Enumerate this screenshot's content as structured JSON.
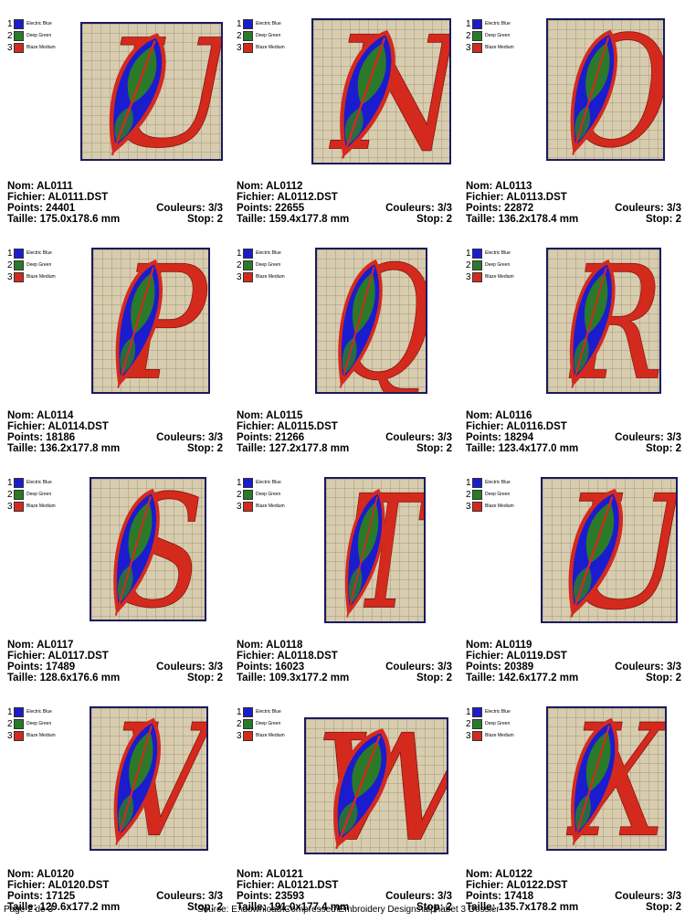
{
  "palette": [
    {
      "num": "1",
      "name": "Electric Blue",
      "hex": "#1c1ccf"
    },
    {
      "num": "2",
      "name": "Deep Green",
      "hex": "#2a7a2a"
    },
    {
      "num": "3",
      "name": "Blaze Medium",
      "hex": "#d42a1e"
    }
  ],
  "labels": {
    "name": "Nom: ",
    "file": "Fichier: ",
    "points": "Points: ",
    "colors": "Couleurs: ",
    "size": "Taille: ",
    "stop": "Stop: "
  },
  "designs": [
    {
      "letter": "U",
      "name": "AL0111",
      "file": "AL0111.DST",
      "points": "24401",
      "colors": "3/3",
      "size": "175.0x178.6 mm",
      "stop": "2"
    },
    {
      "letter": "N",
      "name": "AL0112",
      "file": "AL0112.DST",
      "points": "22655",
      "colors": "3/3",
      "size": "159.4x177.8 mm",
      "stop": "2"
    },
    {
      "letter": "O",
      "name": "AL0113",
      "file": "AL0113.DST",
      "points": "22872",
      "colors": "3/3",
      "size": "136.2x178.4 mm",
      "stop": "2"
    },
    {
      "letter": "P",
      "name": "AL0114",
      "file": "AL0114.DST",
      "points": "18186",
      "colors": "3/3",
      "size": "136.2x177.8 mm",
      "stop": "2"
    },
    {
      "letter": "Q",
      "name": "AL0115",
      "file": "AL0115.DST",
      "points": "21266",
      "colors": "3/3",
      "size": "127.2x177.8 mm",
      "stop": "2"
    },
    {
      "letter": "R",
      "name": "AL0116",
      "file": "AL0116.DST",
      "points": "18294",
      "colors": "3/3",
      "size": "123.4x177.0 mm",
      "stop": "2"
    },
    {
      "letter": "S",
      "name": "AL0117",
      "file": "AL0117.DST",
      "points": "17489",
      "colors": "3/3",
      "size": "128.6x176.6 mm",
      "stop": "2"
    },
    {
      "letter": "T",
      "name": "AL0118",
      "file": "AL0118.DST",
      "points": "16023",
      "colors": "3/3",
      "size": "109.3x177.2 mm",
      "stop": "2"
    },
    {
      "letter": "U",
      "name": "AL0119",
      "file": "AL0119.DST",
      "points": "20389",
      "colors": "3/3",
      "size": "142.6x177.2 mm",
      "stop": "2"
    },
    {
      "letter": "V",
      "name": "AL0120",
      "file": "AL0120.DST",
      "points": "17125",
      "colors": "3/3",
      "size": "129.6x177.2 mm",
      "stop": "2"
    },
    {
      "letter": "W",
      "name": "AL0121",
      "file": "AL0121.DST",
      "points": "23593",
      "colors": "3/3",
      "size": "191.0x177.4 mm",
      "stop": "2"
    },
    {
      "letter": "X",
      "name": "AL0122",
      "file": "AL0122.DST",
      "points": "17418",
      "colors": "3/3",
      "size": "135.7x178.2 mm",
      "stop": "2"
    }
  ],
  "footer": {
    "page": "Page 2 de 3",
    "source": "Source: E:\\download\\Compressed\\Embroidery Designs\\alphabet 3 Dossier"
  }
}
